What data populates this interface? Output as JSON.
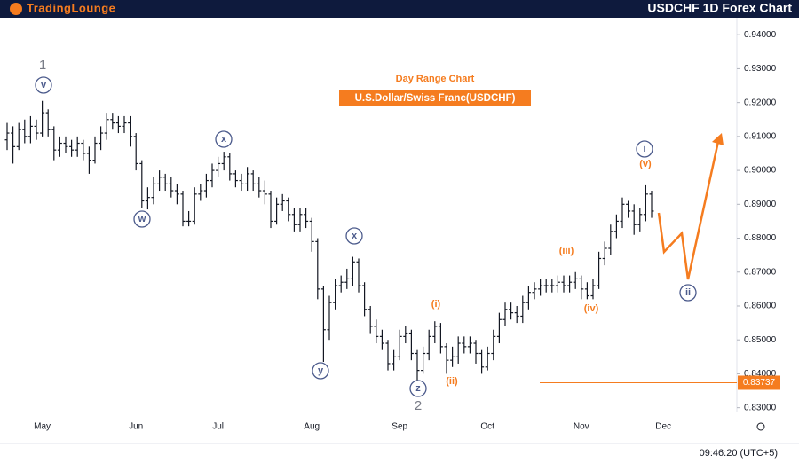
{
  "header": {
    "logo": "TradingLounge",
    "title": "USDCHF 1D Forex Chart"
  },
  "footer": {
    "time": "09:46:20 (UTC+5)"
  },
  "chart_data": {
    "type": "ohlc",
    "title": "Day Range Chart",
    "subtitle": "U.S.Dollar/Swiss Franc(USDCHF)",
    "color": "#131722",
    "categories": [
      null,
      null,
      null,
      null,
      null,
      null,
      "May",
      null,
      null,
      null,
      null,
      null,
      null,
      null,
      null,
      null,
      null,
      null,
      null,
      null,
      null,
      null,
      "Jun",
      null,
      null,
      null,
      null,
      null,
      null,
      null,
      null,
      null,
      null,
      null,
      null,
      null,
      "Jul",
      null,
      null,
      null,
      null,
      null,
      null,
      null,
      null,
      null,
      null,
      null,
      null,
      null,
      null,
      null,
      "Aug",
      null,
      null,
      null,
      null,
      null,
      null,
      null,
      null,
      null,
      null,
      null,
      null,
      null,
      null,
      "Sep",
      null,
      null,
      null,
      null,
      null,
      null,
      null,
      null,
      null,
      null,
      null,
      null,
      null,
      null,
      "Oct",
      null,
      null,
      null,
      null,
      null,
      null,
      null,
      null,
      null,
      null,
      null,
      null,
      null,
      null,
      null,
      "Nov",
      null,
      null,
      null,
      null,
      null,
      null,
      null,
      null,
      null,
      null,
      null,
      null,
      null,
      "Dec",
      null,
      null,
      null,
      null,
      null,
      null,
      null,
      null,
      null,
      null,
      null,
      null
    ],
    "open": [
      0.909,
      0.911,
      0.907,
      0.912,
      0.91,
      0.913,
      0.911,
      0.917,
      0.912,
      0.906,
      0.908,
      0.907,
      0.906,
      0.908,
      0.905,
      0.903,
      0.908,
      0.911,
      0.915,
      0.914,
      0.913,
      0.914,
      0.91,
      0.902,
      0.891,
      0.892,
      0.896,
      0.898,
      0.896,
      0.894,
      0.893,
      0.885,
      0.885,
      0.893,
      0.894,
      0.897,
      0.9,
      0.902,
      0.904,
      0.899,
      0.897,
      0.896,
      0.899,
      0.896,
      0.894,
      0.893,
      0.885,
      0.89,
      0.891,
      0.887,
      0.884,
      0.887,
      0.885,
      0.879,
      0.865,
      0.853,
      0.861,
      0.866,
      0.867,
      0.868,
      0.873,
      0.866,
      0.859,
      0.854,
      0.851,
      0.849,
      0.843,
      0.845,
      0.851,
      0.852,
      0.846,
      0.841,
      0.846,
      0.851,
      0.854,
      0.848,
      0.844,
      0.845,
      0.849,
      0.848,
      0.849,
      0.846,
      0.842,
      0.846,
      0.851,
      0.856,
      0.859,
      0.858,
      0.857,
      0.861,
      0.864,
      0.865,
      0.866,
      0.866,
      0.866,
      0.867,
      0.866,
      0.867,
      0.868,
      0.865,
      0.863,
      0.866,
      0.874,
      0.877,
      0.882,
      0.885,
      0.89,
      0.888,
      0.884,
      0.887,
      0.893,
      null,
      null,
      null,
      null,
      null,
      null,
      null,
      null,
      null,
      null,
      null,
      null,
      null,
      null
    ],
    "high": [
      0.914,
      0.913,
      0.914,
      0.915,
      0.916,
      0.915,
      0.9205,
      0.918,
      0.913,
      0.91,
      0.91,
      0.909,
      0.91,
      0.909,
      0.907,
      0.91,
      0.913,
      0.917,
      0.917,
      0.916,
      0.916,
      0.916,
      0.911,
      0.903,
      0.895,
      0.898,
      0.9,
      0.899,
      0.898,
      0.896,
      0.894,
      0.888,
      0.895,
      0.896,
      0.899,
      0.902,
      0.904,
      0.9055,
      0.905,
      0.9,
      0.899,
      0.901,
      0.9,
      0.898,
      0.897,
      0.894,
      0.892,
      0.893,
      0.892,
      0.889,
      0.889,
      0.889,
      0.886,
      0.88,
      0.866,
      0.863,
      0.868,
      0.869,
      0.871,
      0.8745,
      0.874,
      0.867,
      0.86,
      0.856,
      0.853,
      0.85,
      0.847,
      0.853,
      0.854,
      0.853,
      0.847,
      0.848,
      0.853,
      0.8555,
      0.855,
      0.849,
      0.848,
      0.851,
      0.851,
      0.851,
      0.85,
      0.847,
      0.848,
      0.853,
      0.858,
      0.861,
      0.861,
      0.86,
      0.863,
      0.866,
      0.867,
      0.868,
      0.868,
      0.868,
      0.869,
      0.869,
      0.869,
      0.87,
      0.869,
      0.867,
      0.868,
      0.876,
      0.879,
      0.884,
      0.887,
      0.892,
      0.891,
      0.89,
      0.889,
      0.8956,
      0.894,
      null,
      null,
      null,
      null,
      null,
      null,
      null,
      null,
      null,
      null,
      null,
      null,
      null,
      null
    ],
    "low": [
      0.906,
      0.902,
      0.906,
      0.908,
      0.908,
      0.909,
      0.91,
      0.91,
      0.903,
      0.904,
      0.905,
      0.904,
      0.904,
      0.903,
      0.899,
      0.902,
      0.906,
      0.909,
      0.912,
      0.911,
      0.911,
      0.907,
      0.9,
      0.889,
      0.8885,
      0.89,
      0.894,
      0.894,
      0.892,
      0.89,
      0.8835,
      0.8835,
      0.884,
      0.891,
      0.892,
      0.895,
      0.898,
      0.9,
      0.897,
      0.895,
      0.894,
      0.894,
      0.894,
      0.892,
      0.89,
      0.883,
      0.884,
      0.888,
      0.885,
      0.882,
      0.882,
      0.883,
      0.876,
      0.862,
      0.8435,
      0.85,
      0.859,
      0.864,
      0.865,
      0.866,
      0.864,
      0.857,
      0.852,
      0.849,
      0.847,
      0.841,
      0.841,
      0.844,
      0.849,
      0.844,
      0.8375,
      0.84,
      0.844,
      0.849,
      0.846,
      0.84,
      0.842,
      0.843,
      0.846,
      0.846,
      0.843,
      0.84,
      0.841,
      0.844,
      0.849,
      0.854,
      0.856,
      0.855,
      0.855,
      0.859,
      0.862,
      0.863,
      0.864,
      0.864,
      0.864,
      0.864,
      0.864,
      0.865,
      0.862,
      0.862,
      0.862,
      0.865,
      0.872,
      0.875,
      0.88,
      0.883,
      0.886,
      0.881,
      0.882,
      0.885,
      0.886,
      null,
      null,
      null,
      null,
      null,
      null,
      null,
      null,
      null,
      null,
      null,
      null,
      null,
      null
    ],
    "close": [
      0.911,
      0.907,
      0.912,
      0.91,
      0.913,
      0.911,
      0.917,
      0.912,
      0.906,
      0.908,
      0.907,
      0.906,
      0.908,
      0.905,
      0.903,
      0.908,
      0.911,
      0.915,
      0.914,
      0.913,
      0.914,
      0.91,
      0.902,
      0.891,
      0.892,
      0.896,
      0.898,
      0.896,
      0.894,
      0.893,
      0.885,
      0.885,
      0.893,
      0.894,
      0.897,
      0.9,
      0.902,
      0.904,
      0.899,
      0.897,
      0.896,
      0.899,
      0.896,
      0.894,
      0.893,
      0.885,
      0.89,
      0.891,
      0.887,
      0.884,
      0.887,
      0.885,
      0.879,
      0.865,
      0.853,
      0.861,
      0.866,
      0.867,
      0.868,
      0.873,
      0.866,
      0.859,
      0.854,
      0.851,
      0.849,
      0.843,
      0.845,
      0.851,
      0.852,
      0.846,
      0.841,
      0.846,
      0.851,
      0.854,
      0.848,
      0.844,
      0.845,
      0.849,
      0.848,
      0.849,
      0.846,
      0.842,
      0.846,
      0.851,
      0.856,
      0.859,
      0.858,
      0.857,
      0.861,
      0.864,
      0.865,
      0.866,
      0.866,
      0.866,
      0.867,
      0.866,
      0.867,
      0.868,
      0.865,
      0.863,
      0.866,
      0.874,
      0.877,
      0.882,
      0.885,
      0.89,
      0.888,
      0.884,
      0.887,
      0.893,
      0.888,
      null,
      null,
      null,
      null,
      null,
      null,
      null,
      null,
      null,
      null,
      null,
      null,
      null,
      null
    ],
    "ylim": [
      0.8286,
      0.9445
    ],
    "yticks": [
      {
        "value": 0.83,
        "label": "0.83000"
      },
      {
        "value": 0.84,
        "label": "0.84000"
      },
      {
        "value": 0.85,
        "label": "0.85000"
      },
      {
        "value": 0.86,
        "label": "0.86000"
      },
      {
        "value": 0.87,
        "label": "0.87000"
      },
      {
        "value": 0.88,
        "label": "0.88000"
      },
      {
        "value": 0.89,
        "label": "0.89000"
      },
      {
        "value": 0.9,
        "label": "0.90000"
      },
      {
        "value": 0.91,
        "label": "0.91000"
      },
      {
        "value": 0.92,
        "label": "0.92000"
      },
      {
        "value": 0.93,
        "label": "0.93000"
      },
      {
        "value": 0.94,
        "label": "0.94000"
      }
    ],
    "price_line": {
      "value": 0.83737,
      "color": "#f57c1f"
    },
    "annotations": [
      {
        "text": "1"
      },
      {
        "text": "v"
      },
      {
        "text": "w"
      },
      {
        "text": "x"
      },
      {
        "text": "x"
      },
      {
        "text": "y"
      },
      {
        "text": "z"
      },
      {
        "text": "2"
      },
      {
        "text": "(i)"
      },
      {
        "text": "(ii)"
      },
      {
        "text": "(iii)"
      },
      {
        "text": "(iv)"
      },
      {
        "text": "(v)"
      },
      {
        "text": "i"
      },
      {
        "text": "ii"
      }
    ]
  }
}
